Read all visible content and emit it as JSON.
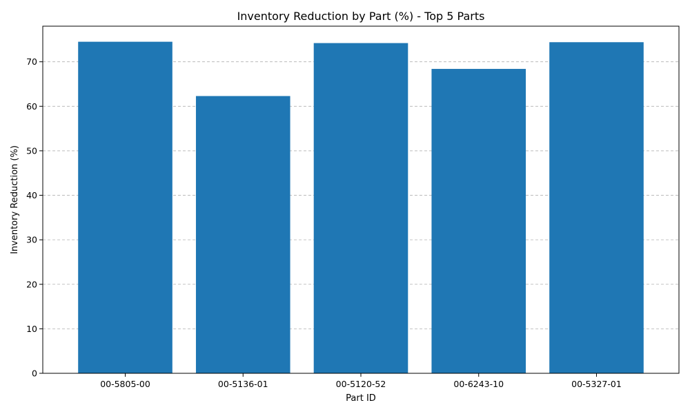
{
  "chart_data": {
    "type": "bar",
    "title": "Inventory Reduction by Part (%) - Top 5 Parts",
    "xlabel": "Part ID",
    "ylabel": "Inventory Reduction (%)",
    "categories": [
      "00-5805-00",
      "00-5136-01",
      "00-5120-52",
      "00-6243-10",
      "00-5327-01"
    ],
    "values": [
      74.5,
      62.3,
      74.2,
      68.4,
      74.4
    ],
    "ylim": [
      0,
      78
    ],
    "yticks": [
      0,
      10,
      20,
      30,
      40,
      50,
      60,
      70
    ],
    "grid": "y, dashed",
    "legend": "none",
    "bar_color": "#1f77b4",
    "grid_color": "#b0b0b0"
  }
}
